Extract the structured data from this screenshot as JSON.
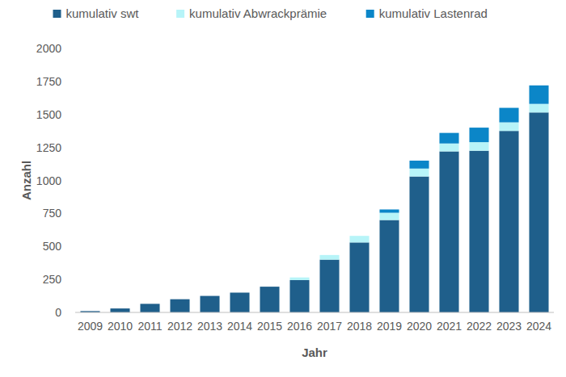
{
  "chart_data": {
    "type": "bar",
    "stacked": true,
    "grid": false,
    "legend": "top",
    "x_label": "Jahr",
    "y_label": "Anzahl",
    "categories": [
      "2009",
      "2010",
      "2011",
      "2012",
      "2013",
      "2014",
      "2015",
      "2016",
      "2017",
      "2018",
      "2019",
      "2020",
      "2021",
      "2022",
      "2023",
      "2024"
    ],
    "series": [
      {
        "name": "kumulativ swt",
        "color": "#1f5f8b",
        "values": [
          10,
          30,
          65,
          100,
          125,
          150,
          195,
          245,
          400,
          530,
          700,
          1030,
          1220,
          1225,
          1375,
          1515
        ]
      },
      {
        "name": "kumulativ Abwrackprämie",
        "color": "#b7f4f8",
        "values": [
          0,
          0,
          0,
          0,
          0,
          0,
          0,
          20,
          35,
          50,
          55,
          60,
          60,
          65,
          65,
          65
        ]
      },
      {
        "name": "kumulativ Lastenrad",
        "color": "#0b86c8",
        "values": [
          0,
          0,
          0,
          0,
          0,
          0,
          0,
          0,
          0,
          0,
          25,
          60,
          80,
          110,
          110,
          140
        ]
      }
    ],
    "ylim": [
      0,
      2000
    ],
    "yticks": [
      0,
      250,
      500,
      750,
      1000,
      1250,
      1500,
      1750,
      2000
    ]
  }
}
